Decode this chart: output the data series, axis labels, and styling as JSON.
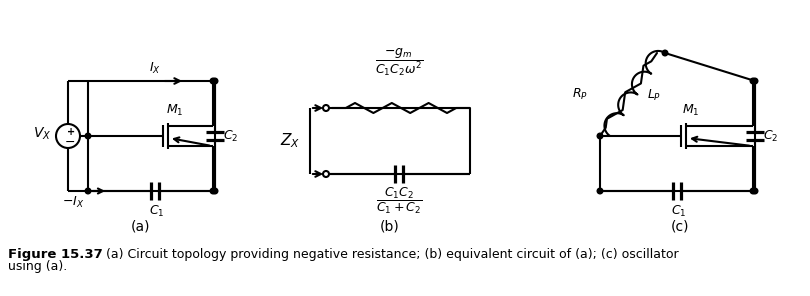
{
  "figure_label": "Figure 15.37",
  "caption_line1": "    (a) Circuit topology providing negative resistance; (b) equivalent circuit of (a); (c) oscillator",
  "caption_line2": "using (a).",
  "bg_color": "#ffffff",
  "lw": 1.5
}
